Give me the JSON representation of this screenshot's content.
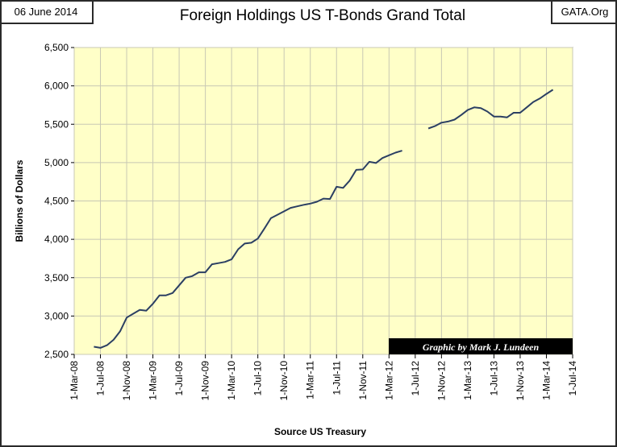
{
  "header": {
    "date": "06 June 2014",
    "source": "GATA.Org",
    "title": "Foreign Holdings US T-Bonds Grand Total"
  },
  "chart_data": {
    "type": "line",
    "title": "Foreign Holdings US T-Bonds Grand Total",
    "xlabel": "Source US Treasury",
    "ylabel": "Billions of Dollars",
    "ylim": [
      2500,
      6500
    ],
    "y_ticks": [
      2500,
      3000,
      3500,
      4000,
      4500,
      5000,
      5500,
      6000,
      6500
    ],
    "x_ticks": [
      "1-Mar-08",
      "1-Jul-08",
      "1-Nov-08",
      "1-Mar-09",
      "1-Jul-09",
      "1-Nov-09",
      "1-Mar-10",
      "1-Jul-10",
      "1-Nov-10",
      "1-Mar-11",
      "1-Jul-11",
      "1-Nov-11",
      "1-Mar-12",
      "1-Jul-12",
      "1-Nov-12",
      "1-Mar-13",
      "1-Jul-13",
      "1-Nov-13",
      "1-Mar-14",
      "1-Jul-14"
    ],
    "grid": true,
    "colors": {
      "plot_bg": "#ffffc8",
      "line": "#2b3f63",
      "grid": "#c8c8b4"
    },
    "annotation": "Graphic by Mark J. Lundeen",
    "series": [
      {
        "segments": [
          {
            "start": "2008-06",
            "values": [
              2600,
              2585,
              2620,
              2690,
              2800,
              2980,
              3030,
              3080,
              3070,
              3160,
              3270,
              3270,
              3300,
              3400,
              3500,
              3520,
              3570,
              3570,
              3675,
              3690,
              3705,
              3740,
              3870,
              3945,
              3955,
              4010,
              4140,
              4275,
              4320,
              4365,
              4410,
              4430,
              4450,
              4465,
              4490,
              4530,
              4525,
              4685,
              4670,
              4765,
              4905,
              4910,
              5010,
              4995,
              5060,
              5095,
              5130,
              5155
            ]
          },
          {
            "start": "2012-09",
            "values": [
              5445,
              5475,
              5520,
              5535,
              5560,
              5620,
              5685,
              5720,
              5710,
              5665,
              5600,
              5600,
              5590,
              5650,
              5650,
              5720,
              5790,
              5835,
              5895,
              5950
            ]
          }
        ]
      }
    ]
  }
}
